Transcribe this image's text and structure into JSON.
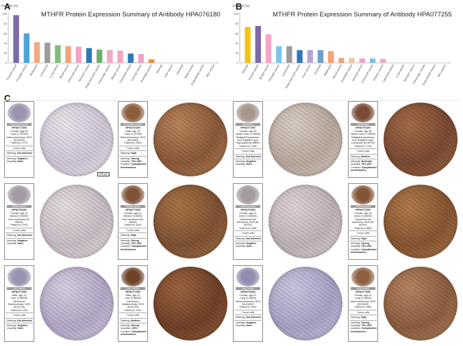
{
  "panels": {
    "a": "A",
    "b": "B",
    "c": "C"
  },
  "chart_data": [
    {
      "type": "bar",
      "title": "MTHFR Protein Expression Summary of Antibody HPA076180",
      "ylabel": "Patients (%)",
      "ylim": [
        0,
        100
      ],
      "yticks": [
        0,
        20,
        40,
        60,
        80,
        100
      ],
      "categories": [
        "Thyroid cancer",
        "Prostate cancer",
        "Melanoma",
        "Lymphoma",
        "Lung cancer",
        "Renal cancer",
        "Carcinoid cancer",
        "Stomach cancer",
        "Head and neck cancer",
        "Pancreatic cancer",
        "Breast cancer",
        "Colorectal cancer",
        "Cervical cancer",
        "Urothelial cancer",
        "Gliomas",
        "Liver cancer",
        "Carcinoid",
        "Testis cancer",
        "Endometrial cancer",
        "Skin cancer"
      ],
      "values": [
        97,
        60,
        42,
        41,
        36,
        34,
        33,
        30,
        27,
        26,
        25,
        19,
        18,
        7,
        0,
        0,
        0,
        0,
        0,
        0
      ],
      "colors": [
        "#7d6aa8",
        "#4fa3d9",
        "#f2a97e",
        "#9c9c9c",
        "#7fbf7b",
        "#f3a37a",
        "#f2a3c7",
        "#2f78b7",
        "#6ab06a",
        "#f4a6c6",
        "#f4a6c6",
        "#2f78b7",
        "#f2a3c7",
        "#f28c28",
        "#cccccc",
        "#cccccc",
        "#cccccc",
        "#cccccc",
        "#cccccc",
        "#cccccc"
      ],
      "grid": false,
      "legend": "none"
    },
    {
      "type": "bar",
      "title": "MTHFR Protein Expression Summary of Antibody HPA077255",
      "ylabel": "Patients (%)",
      "ylim": [
        0,
        100
      ],
      "yticks": [
        0,
        20,
        40,
        60,
        80,
        100
      ],
      "categories": [
        "Gliomas",
        "Thyroid cancer",
        "Breast cancer",
        "Prostate cancer",
        "Lymphoma",
        "Head and neck cancer",
        "Liver cancer",
        "Carcinoid",
        "Melanoma",
        "Renal cancer",
        "Urothelial cancer",
        "Cervical cancer",
        "Colorectal cancer",
        "Ovarian cancer",
        "Carcinoid cancer",
        "Lung cancer",
        "Stomach cancer",
        "Pancreatic cancer",
        "Endometrial cancer",
        "Skin cancer"
      ],
      "values": [
        73,
        75,
        58,
        34,
        34,
        26,
        26,
        26,
        24,
        10,
        10,
        9,
        9,
        8,
        0,
        0,
        0,
        0,
        0,
        0
      ],
      "colors": [
        "#f1c40f",
        "#7d6aa8",
        "#f4a6c6",
        "#7fc6e8",
        "#9c9c9c",
        "#2f78b7",
        "#b3a6d6",
        "#6fa0c8",
        "#f3a37a",
        "#f3a37a",
        "#f4c4a0",
        "#f2a3c7",
        "#7fbfe0",
        "#f2a3c7",
        "#cccccc",
        "#cccccc",
        "#cccccc",
        "#cccccc",
        "#cccccc",
        "#cccccc"
      ],
      "grid": false,
      "legend": "none"
    }
  ],
  "tiles": [
    {
      "tag": "Colorectal cancer",
      "antibody": "HPA077255",
      "patient": [
        "Female, age 63",
        "Colon (T-67000)",
        "Adenocarcinoma, NOS",
        "(M-81403)",
        "Patient id: 4770"
      ],
      "staining": "Not detected",
      "intensity": "Negative",
      "quantity": "None",
      "location": "",
      "scale": "200 μm"
    },
    {
      "tag": "Colorectal cancer",
      "antibody": "HPA076180",
      "patient": [
        "Male, age 78",
        "Colon (T-67000)",
        "Adenocarcinoma, NOS",
        "(M-81403)",
        "Patient id: 2009"
      ],
      "staining": "High",
      "intensity": "Strong",
      "quantity": "75%-25%",
      "location": "Cytoplasmic/ membranous"
    },
    {
      "tag": "Lymphoma",
      "antibody": "HPA077255",
      "patient": [
        "Female, age 65",
        "Lymph node (T-08000)",
        "Malignant lymphoma,",
        "non-Hodgkin's type,",
        "High grade (M-96803)",
        "Patient id: 2238"
      ],
      "staining": "Not detected",
      "intensity": "Negative",
      "quantity": "None",
      "location": ""
    },
    {
      "tag": "Lymphoma",
      "antibody": "HPA076180",
      "patient": [
        "Female, age 58",
        "Lymph node (T-08000)",
        "Malignant lymphoma,",
        "non-Hodgkin's type,",
        "Low grade (M-96703)",
        "Patient id: 1728"
      ],
      "staining": "Medium",
      "intensity": "Moderate",
      "quantity": "75%-25%",
      "location": "Cytoplasmic/ membranous"
    },
    {
      "tag": "Breast cancer",
      "antibody": "HPA076180",
      "patient": [
        "Female, age 41",
        "Breast (T-04000)",
        "Duct carcinoma (M-",
        "85003)",
        "Patient id: 1910"
      ],
      "staining": "Not detected",
      "intensity": "Negative",
      "quantity": "None",
      "location": ""
    },
    {
      "tag": "Breast cancer",
      "antibody": "HPA077255",
      "patient": [
        "Female, age 42",
        "Breast (T-04000)",
        "Duct carcinoma (M-",
        "85003)",
        "Patient id: 4160"
      ],
      "staining": "High",
      "intensity": "Strong",
      "quantity": "75%-25%",
      "location": "Cytoplasmic/ membranous"
    },
    {
      "tag": "Cervical cancer",
      "antibody": "HPA076180",
      "patient": [
        "Female, age 41",
        "Cervix (T-83000)",
        "Squamous cell",
        "carcinoma, NOS (M-",
        "80703)",
        "Patient id: 3598"
      ],
      "staining": "Not detected",
      "intensity": "Negative",
      "quantity": "None",
      "location": ""
    },
    {
      "tag": "Cervical cancer",
      "antibody": "HPA077255",
      "patient": [
        "Female, age 38",
        "Cervix (T-83000)",
        "Squamous cell",
        "carcinoma, NOS (M-",
        "80703)",
        "Patient id: 5583"
      ],
      "staining": "High",
      "intensity": "Strong",
      "quantity": "75%-25%",
      "location": "Cytoplasmic/ membranous"
    },
    {
      "tag": "Liver cancer",
      "antibody": "HPA077255",
      "patient": [
        "Male, age 75",
        "Liver (T-56000)",
        "Carcinoma,",
        "Hepatocellular, NOS",
        "(M-81703)",
        "Patient id: 2224"
      ],
      "staining": "Not detected",
      "intensity": "Negative",
      "quantity": "None",
      "location": ""
    },
    {
      "tag": "Liver cancer",
      "antibody": "HPA077255",
      "patient": [
        "Male, age 57",
        "Liver (T-56000)",
        "Carcinoma,",
        "Hepatocellular, NOS",
        "(M-81703)",
        "Patient id: 1614"
      ],
      "staining": "Medium",
      "intensity": "Strong",
      "quantity": "<25%",
      "location": "Cytoplasmic/ membranous"
    },
    {
      "tag": "Lung cancer",
      "antibody": "HPA076180",
      "patient": [
        "Female, age 57",
        "Lung (T-28000)",
        "Adenocarcinoma, NOS",
        "(M-81403)",
        "Patient id: 1002"
      ],
      "staining": "Not detected",
      "intensity": "Negative",
      "quantity": "None",
      "location": ""
    },
    {
      "tag": "Lung cancer",
      "antibody": "HPA077255",
      "patient": [
        "Female, age 41",
        "Lung (T-28000)",
        "Adenocarcinoma, NOS",
        "(M-81403)",
        "Patient id: 2882"
      ],
      "staining": "High",
      "intensity": "Strong",
      "quantity": "75%-25%",
      "location": "Cytoplasmic/ membranous"
    }
  ],
  "labels": {
    "tumor_cells": "Tumor cells",
    "staining": "Staining:",
    "intensity": "Intensity:",
    "quantity": "Quantity:",
    "location": "Location:"
  }
}
